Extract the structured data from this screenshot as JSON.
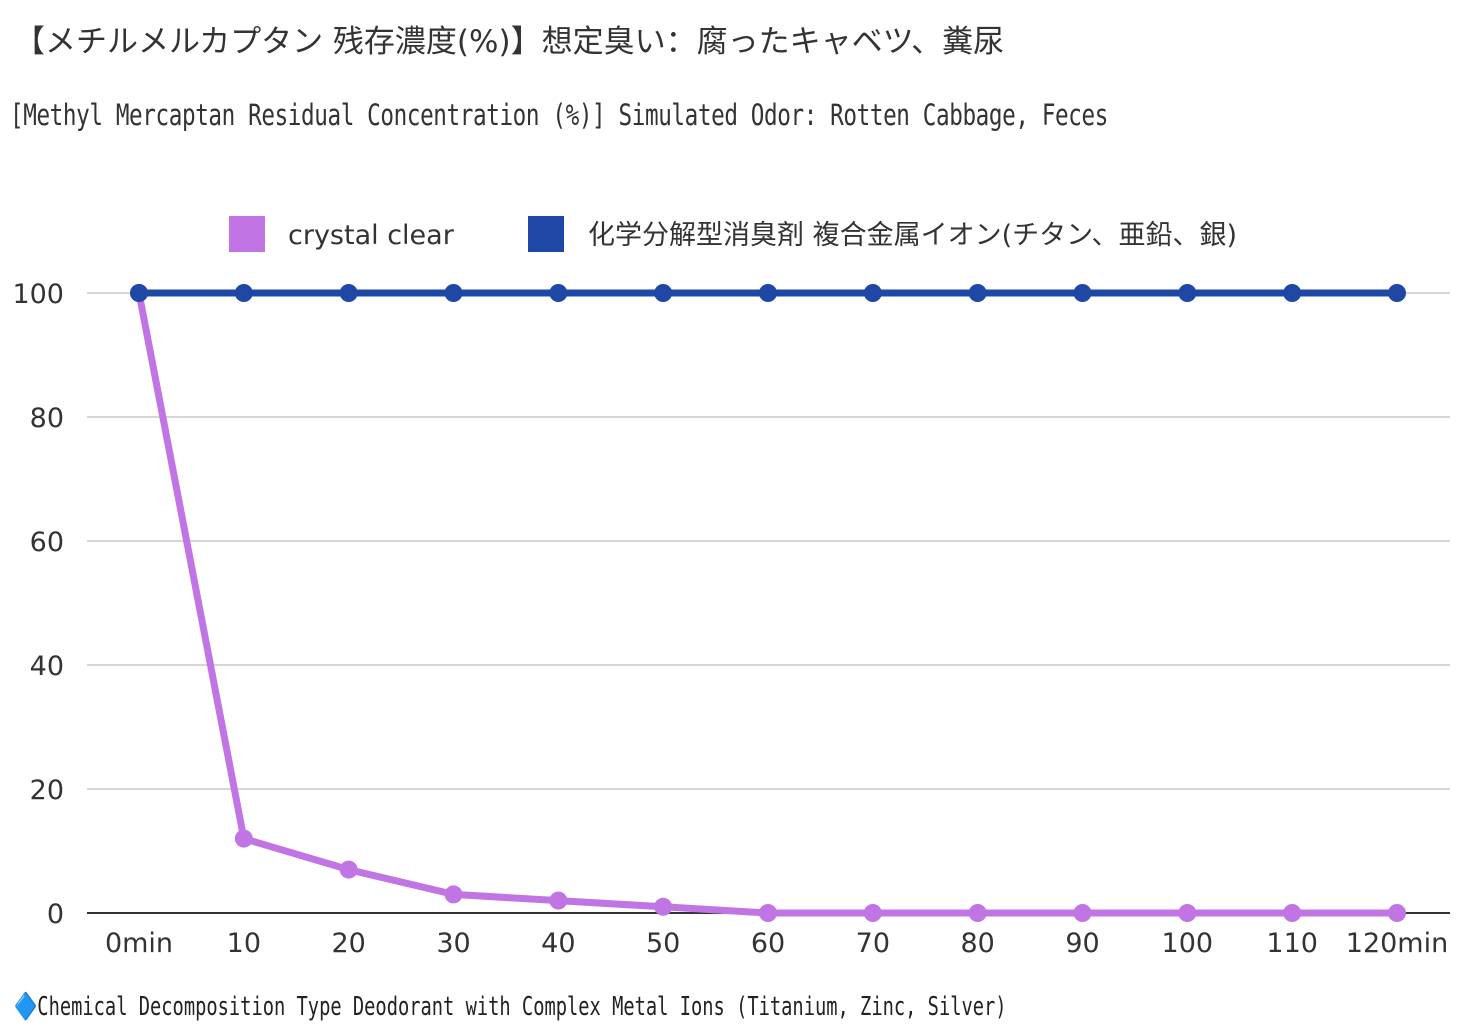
{
  "header": {
    "title_jp": "【メチルメルカプタン 残存濃度(%)】想定臭い：腐ったキャベツ、糞尿",
    "title_en": "[Methyl Mercaptan Residual Concentration (%)] Simulated Odor: Rotten Cabbage, Feces"
  },
  "footnote": {
    "marker": "🔷",
    "text": "Chemical Decomposition Type Deodorant with Complex Metal Ions (Titanium, Zinc, Silver)"
  },
  "chart_data": {
    "type": "line",
    "categories": [
      "0min",
      "10",
      "20",
      "30",
      "40",
      "50",
      "60",
      "70",
      "80",
      "90",
      "100",
      "110",
      "120min"
    ],
    "series": [
      {
        "name": "crystal clear",
        "color": "#c174e3",
        "values": [
          100,
          12,
          7,
          3,
          2,
          1,
          0,
          0,
          0,
          0,
          0,
          0,
          0
        ]
      },
      {
        "name": "化学分解型消臭剤 複合金属イオン(チタン、亜鉛、銀)",
        "color": "#1f47a6",
        "values": [
          100,
          100,
          100,
          100,
          100,
          100,
          100,
          100,
          100,
          100,
          100,
          100,
          100
        ]
      }
    ],
    "ylim": [
      0,
      100
    ],
    "yticks": [
      0,
      20,
      40,
      60,
      80,
      100
    ],
    "grid": true,
    "legend_position": "top"
  }
}
